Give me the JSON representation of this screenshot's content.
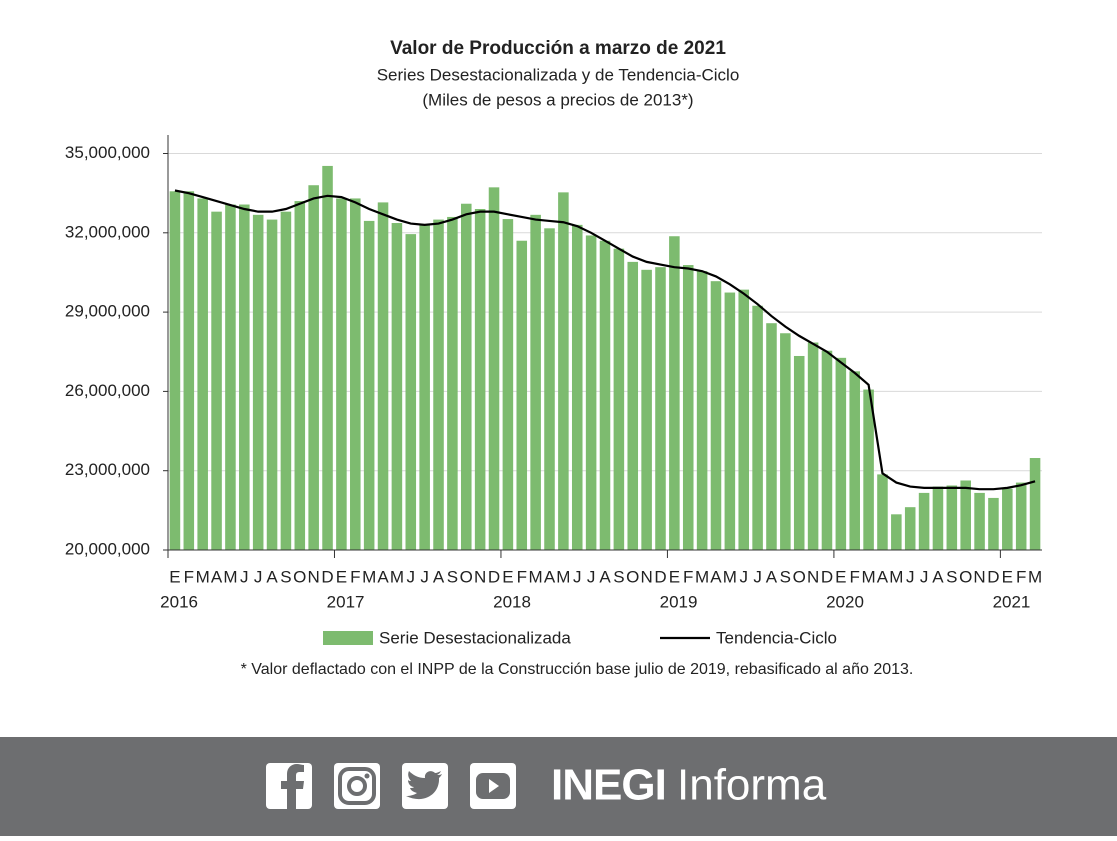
{
  "chart_data": {
    "type": "bar",
    "title": "Valor de Producción a marzo de 2021",
    "subtitle": "Series Desestacionalizada y de Tendencia-Ciclo",
    "subtitle2": "(Miles de pesos a precios de 2013*)",
    "note": "* Valor deflactado con el INPP de la Construcción base julio de 2019, rebasificado al año 2013.",
    "categories": [
      "E",
      "F",
      "M",
      "A",
      "M",
      "J",
      "J",
      "A",
      "S",
      "O",
      "N",
      "D",
      "E",
      "F",
      "M",
      "A",
      "M",
      "J",
      "J",
      "A",
      "S",
      "O",
      "N",
      "D",
      "E",
      "F",
      "M",
      "A",
      "M",
      "J",
      "J",
      "A",
      "S",
      "O",
      "N",
      "D",
      "E",
      "F",
      "M",
      "A",
      "M",
      "J",
      "J",
      "A",
      "S",
      "O",
      "N",
      "D",
      "E",
      "F",
      "M",
      "A",
      "M",
      "J",
      "J",
      "A",
      "S",
      "O",
      "N",
      "D",
      "E",
      "F",
      "M"
    ],
    "year_labels": [
      "2016",
      "2017",
      "2018",
      "2019",
      "2020",
      "2021"
    ],
    "ylim": [
      20000000,
      35700000
    ],
    "yticks": [
      {
        "value": 20000000,
        "label": "20,000,000"
      },
      {
        "value": 23000000,
        "label": "23,000,000"
      },
      {
        "value": 26000000,
        "label": "26,000,000"
      },
      {
        "value": 29000000,
        "label": "29,000,000"
      },
      {
        "value": 32000000,
        "label": "32,000,000"
      },
      {
        "value": 35000000,
        "label": "35,000,000"
      }
    ],
    "grid": true,
    "legend": "bottom",
    "series": [
      {
        "name": "Serie Desestacionalizada",
        "type": "bar",
        "color": "#7dbb6f",
        "values": [
          33570000,
          33570000,
          33300000,
          32800000,
          33070000,
          33070000,
          32680000,
          32500000,
          32800000,
          33200000,
          33800000,
          34530000,
          33300000,
          33300000,
          32450000,
          33150000,
          32370000,
          31950000,
          32300000,
          32500000,
          32600000,
          33100000,
          32900000,
          33720000,
          32520000,
          31700000,
          32680000,
          32170000,
          33530000,
          32300000,
          31900000,
          31700000,
          31400000,
          30900000,
          30600000,
          30700000,
          31870000,
          30780000,
          30550000,
          30170000,
          29740000,
          29850000,
          29240000,
          28580000,
          28200000,
          27340000,
          27850000,
          27540000,
          27270000,
          26760000,
          26070000,
          22860000,
          21350000,
          21620000,
          22160000,
          22400000,
          22440000,
          22630000,
          22160000,
          21970000,
          22320000,
          22550000,
          23480000
        ]
      },
      {
        "name": "Tendencia-Ciclo",
        "type": "line",
        "color": "#000000",
        "values": [
          33600000,
          33500000,
          33350000,
          33200000,
          33050000,
          32900000,
          32800000,
          32800000,
          32900000,
          33100000,
          33300000,
          33400000,
          33350000,
          33150000,
          32900000,
          32700000,
          32500000,
          32350000,
          32300000,
          32350000,
          32500000,
          32700000,
          32800000,
          32800000,
          32700000,
          32600000,
          32500000,
          32450000,
          32400000,
          32250000,
          32000000,
          31700000,
          31400000,
          31100000,
          30900000,
          30800000,
          30700000,
          30650000,
          30550000,
          30350000,
          30050000,
          29700000,
          29300000,
          28850000,
          28450000,
          28100000,
          27800000,
          27500000,
          27100000,
          26700000,
          26250000,
          22900000,
          22550000,
          22400000,
          22350000,
          22350000,
          22350000,
          22350000,
          22300000,
          22300000,
          22350000,
          22450000,
          22600000
        ]
      }
    ]
  },
  "footer": {
    "brand_bold": "INEGI",
    "brand": "Informa"
  }
}
